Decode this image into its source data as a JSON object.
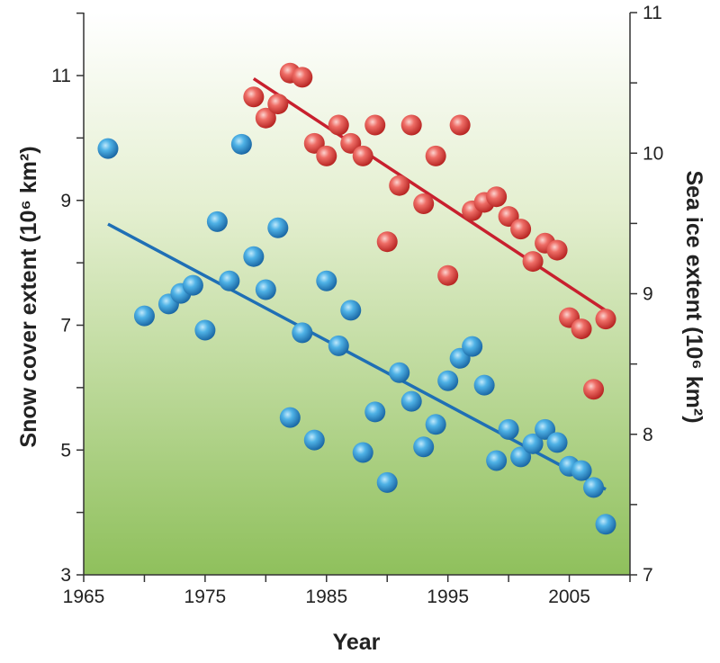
{
  "chart_data": {
    "type": "scatter",
    "xlabel": "Year",
    "ylabel_left": "Snow cover extent (10⁶ km²)",
    "ylabel_right": "Sea ice extent (10⁶ km²)",
    "xlim": [
      1965,
      2010
    ],
    "ylim_left": [
      3,
      12
    ],
    "ylim_right": [
      7,
      11
    ],
    "x_ticks": [
      1965,
      1975,
      1985,
      1995,
      2005
    ],
    "y_ticks_left": [
      3,
      5,
      7,
      9,
      11
    ],
    "y_ticks_right": [
      7,
      8,
      9,
      10,
      11
    ],
    "grid": false,
    "series": [
      {
        "name": "Snow cover extent",
        "axis": "left",
        "color": "#1f78c1",
        "x": [
          1967,
          1970,
          1972,
          1973,
          1974,
          1975,
          1976,
          1977,
          1978,
          1979,
          1980,
          1981,
          1982,
          1983,
          1984,
          1985,
          1986,
          1987,
          1988,
          1989,
          1990,
          1991,
          1992,
          1993,
          1994,
          1995,
          1996,
          1997,
          1998,
          1999,
          2000,
          2001,
          2002,
          2003,
          2004,
          2005,
          2006,
          2007,
          2008
        ],
        "y": [
          9.83,
          7.15,
          7.34,
          7.51,
          7.64,
          6.92,
          8.66,
          7.71,
          9.9,
          8.1,
          7.57,
          8.56,
          5.52,
          6.88,
          5.16,
          7.71,
          6.67,
          7.24,
          4.96,
          5.61,
          4.48,
          6.24,
          5.78,
          5.05,
          5.41,
          6.11,
          6.47,
          6.66,
          6.04,
          4.83,
          5.33,
          4.89,
          5.1,
          5.33,
          5.12,
          4.74,
          4.67,
          4.4,
          3.81
        ],
        "trend": {
          "x": [
            1967,
            2008
          ],
          "y": [
            8.62,
            4.37
          ],
          "color": "#1f6fb5"
        }
      },
      {
        "name": "Sea ice extent",
        "axis": "right",
        "color": "#d9302b",
        "x": [
          1979,
          1980,
          1981,
          1982,
          1983,
          1984,
          1985,
          1986,
          1987,
          1988,
          1989,
          1990,
          1991,
          1992,
          1993,
          1994,
          1995,
          1996,
          1997,
          1998,
          1999,
          2000,
          2001,
          2002,
          2003,
          2004,
          2005,
          2006,
          2007,
          2008
        ],
        "y": [
          10.4,
          10.25,
          10.35,
          10.57,
          10.54,
          10.07,
          9.98,
          10.2,
          10.07,
          9.98,
          10.2,
          9.37,
          9.77,
          10.2,
          9.64,
          9.98,
          9.13,
          10.2,
          9.59,
          9.65,
          9.69,
          9.55,
          9.46,
          9.23,
          9.36,
          9.31,
          8.83,
          8.75,
          8.32,
          8.82
        ],
        "trend": {
          "x": [
            1979,
            2008
          ],
          "y": [
            10.53,
            8.88
          ],
          "color": "#c8202e"
        }
      }
    ]
  }
}
